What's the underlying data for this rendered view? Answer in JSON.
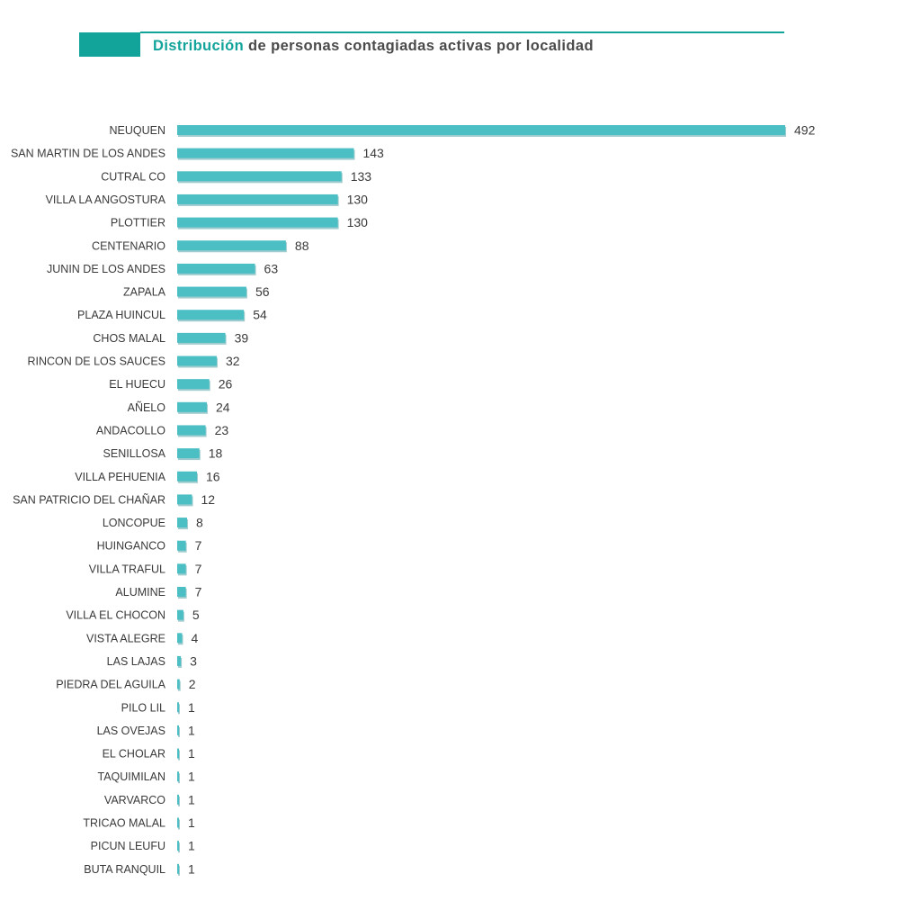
{
  "header": {
    "title_accent": "Distribución",
    "title_rest": " de personas contagiadas activas por localidad"
  },
  "colors": {
    "accent": "#12a39a",
    "bar": "#4cbfc4",
    "bar_shadow": "#2e8f94",
    "text": "#3a3a3a"
  },
  "chart_data": {
    "type": "bar",
    "orientation": "horizontal",
    "title": "Distribución de personas contagiadas activas por localidad",
    "categories": [
      "NEUQUEN",
      "SAN MARTIN DE LOS ANDES",
      "CUTRAL CO",
      "VILLA LA ANGOSTURA",
      "PLOTTIER",
      "CENTENARIO",
      "JUNIN DE LOS ANDES",
      "ZAPALA",
      "PLAZA HUINCUL",
      "CHOS MALAL",
      "RINCON DE LOS SAUCES",
      "EL HUECU",
      "AÑELO",
      "ANDACOLLO",
      "SENILLOSA",
      "VILLA PEHUENIA",
      "SAN PATRICIO DEL CHAÑAR",
      "LONCOPUE",
      "HUINGANCO",
      "VILLA TRAFUL",
      "ALUMINE",
      "VILLA EL CHOCON",
      "VISTA ALEGRE",
      "LAS LAJAS",
      "PIEDRA DEL AGUILA",
      "PILO LIL",
      "LAS OVEJAS",
      "EL CHOLAR",
      "TAQUIMILAN",
      "VARVARCO",
      "TRICAO MALAL",
      "PICUN LEUFU",
      "BUTA RANQUIL"
    ],
    "values": [
      492,
      143,
      133,
      130,
      130,
      88,
      63,
      56,
      54,
      39,
      32,
      26,
      24,
      23,
      18,
      16,
      12,
      8,
      7,
      7,
      7,
      5,
      4,
      3,
      2,
      1,
      1,
      1,
      1,
      1,
      1,
      1,
      1
    ],
    "xlim": [
      0,
      492
    ],
    "grid": false,
    "legend": "none",
    "data_labels": true
  }
}
